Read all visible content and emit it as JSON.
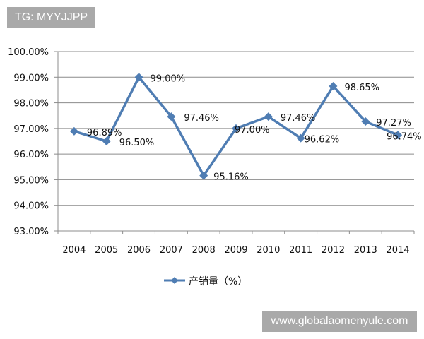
{
  "watermarks": {
    "top_left": "TG: MYYJJPP",
    "bottom_right": "www.globalaomenyule.com"
  },
  "chart_data": {
    "type": "line",
    "title": "",
    "xlabel": "",
    "ylabel": "",
    "categories": [
      "2004",
      "2005",
      "2006",
      "2007",
      "2008",
      "2009",
      "2010",
      "2011",
      "2012",
      "2013",
      "2014"
    ],
    "series": [
      {
        "name": "产销量（%）",
        "values": [
          96.89,
          96.5,
          99.0,
          97.46,
          95.16,
          97.0,
          97.46,
          96.62,
          98.65,
          97.27,
          96.74
        ],
        "labels": [
          "96.89%",
          "96.50%",
          "99.00%",
          "97.46%",
          "95.16%",
          "97.00%",
          "97.46%",
          "96.62%",
          "98.65%",
          "97.27%",
          "96.74%"
        ],
        "color": "#4f7db3",
        "marker": "diamond"
      }
    ],
    "ylim": [
      93,
      100
    ],
    "yticks": [
      "93.00%",
      "94.00%",
      "95.00%",
      "96.00%",
      "97.00%",
      "98.00%",
      "99.00%",
      "100.00%"
    ],
    "grid": true,
    "legend": "bottom"
  }
}
